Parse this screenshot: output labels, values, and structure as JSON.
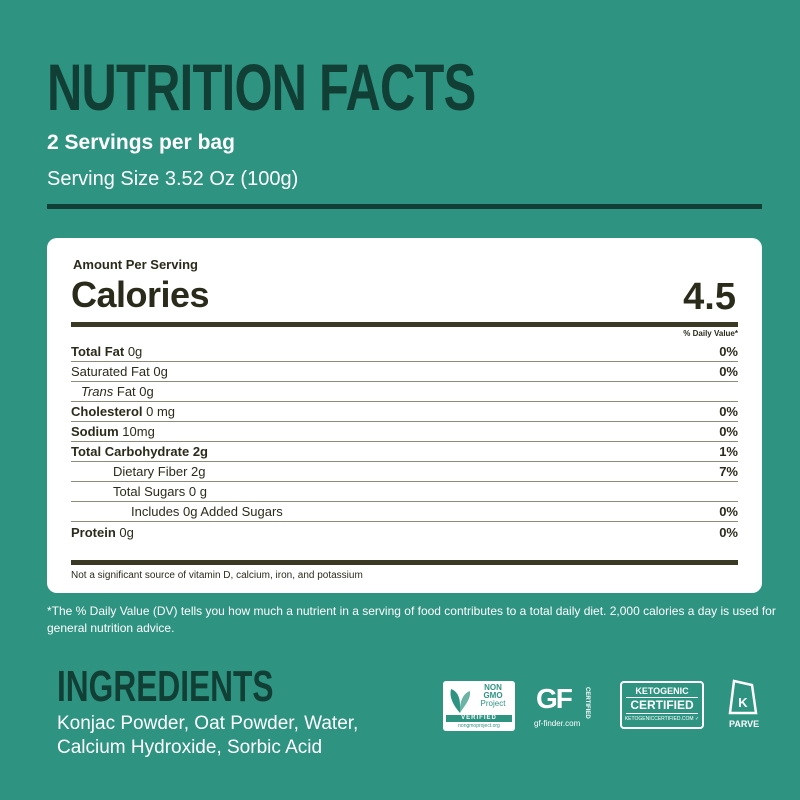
{
  "header": {
    "title": "NUTRITION FACTS",
    "servings": "2 Servings per bag",
    "serving_size": "Serving Size 3.52 Oz (100g)"
  },
  "label": {
    "amount_per_serving": "Amount Per Serving",
    "calories_label": "Calories",
    "calories_value": "4.5",
    "dv_header": "% Daily Value*",
    "rows": [
      {
        "bold": "Total Fat",
        "rest": " 0g",
        "pct": "0%"
      },
      {
        "bold": "",
        "rest": "Saturated Fat 0g",
        "pct": "0%"
      },
      {
        "italic": "Trans",
        "rest": " Fat 0g",
        "pct": ""
      },
      {
        "bold": "Cholesterol",
        "rest": " 0 mg",
        "pct": "0%"
      },
      {
        "bold": "Sodium",
        "rest": " 10mg",
        "pct": "0%"
      },
      {
        "bold": "Total Carbohydrate 2g",
        "rest": "",
        "pct": "1%"
      },
      {
        "bold": "",
        "rest": "Dietary Fiber 2g",
        "pct": "7%"
      },
      {
        "bold": "",
        "rest": "Total Sugars 0 g",
        "pct": ""
      },
      {
        "bold": "",
        "rest": "Includes 0g Added Sugars",
        "pct": "0%"
      },
      {
        "bold": "Protein",
        "rest": " 0g",
        "pct": "0%"
      }
    ],
    "footnote": "Not a significant source of vitamin D, calcium, iron, and potassium"
  },
  "dv_note": "*The % Daily Value (DV) tells you how much a nutrient in a serving of food contributes to a total daily diet. 2,000 calories a day is used for general nutrition advice.",
  "ingredients": {
    "title": "INGREDIENTS",
    "line1": "Konjac Powder, Oat Powder, Water,",
    "line2": "Calcium Hydroxide, Sorbic Acid"
  },
  "badges": {
    "nongmo": {
      "line1": "NON",
      "line2": "GMO",
      "line3": "Project",
      "verified": "VERIFIED",
      "url": "nongmoproject.org",
      "icon": "butterfly-leaf-icon"
    },
    "gf": {
      "logo": "GF",
      "certified": "CERTIFIED",
      "url": "gf-finder.com",
      "icon": "gluten-free-icon"
    },
    "keto": {
      "line1": "KETOGENIC",
      "line2": "CERTIFIED",
      "url": "KETOGENICCERTIFIED.COM",
      "icon": "check-icon"
    },
    "parve": {
      "label": "PARVE",
      "symbol": "K",
      "icon": "kosher-k-icon"
    }
  },
  "colors": {
    "background": "#2e9381",
    "dark_green": "#123f35",
    "label_text": "#2b2b1c"
  }
}
